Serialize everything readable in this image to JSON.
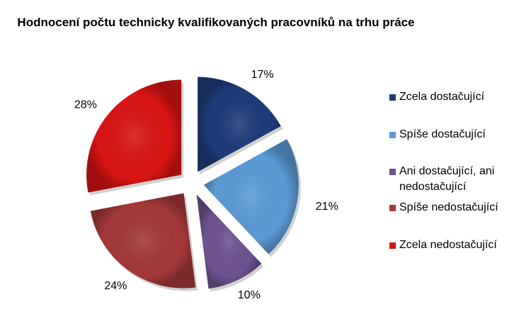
{
  "chart_data": {
    "type": "pie",
    "title": "Hodnocení počtu technicky kvalifikovaných pracovníků na trhu práce",
    "exploded": true,
    "legend_position": "right",
    "slices": [
      {
        "label": "Zcela dostačující",
        "value": 17,
        "display": "17%",
        "color": "#1f3c7a"
      },
      {
        "label": "Spíše dostačující",
        "value": 21,
        "display": "21%",
        "color": "#5b9bd5"
      },
      {
        "label": "Ani dostačující, ani nedostačující",
        "value": 10,
        "display": "10%",
        "color": "#6e5291"
      },
      {
        "label": "Spíše nedostačující",
        "value": 24,
        "display": "24%",
        "color": "#a43838"
      },
      {
        "label": "Zcela nedostačující",
        "value": 28,
        "display": "28%",
        "color": "#d91414"
      }
    ]
  }
}
